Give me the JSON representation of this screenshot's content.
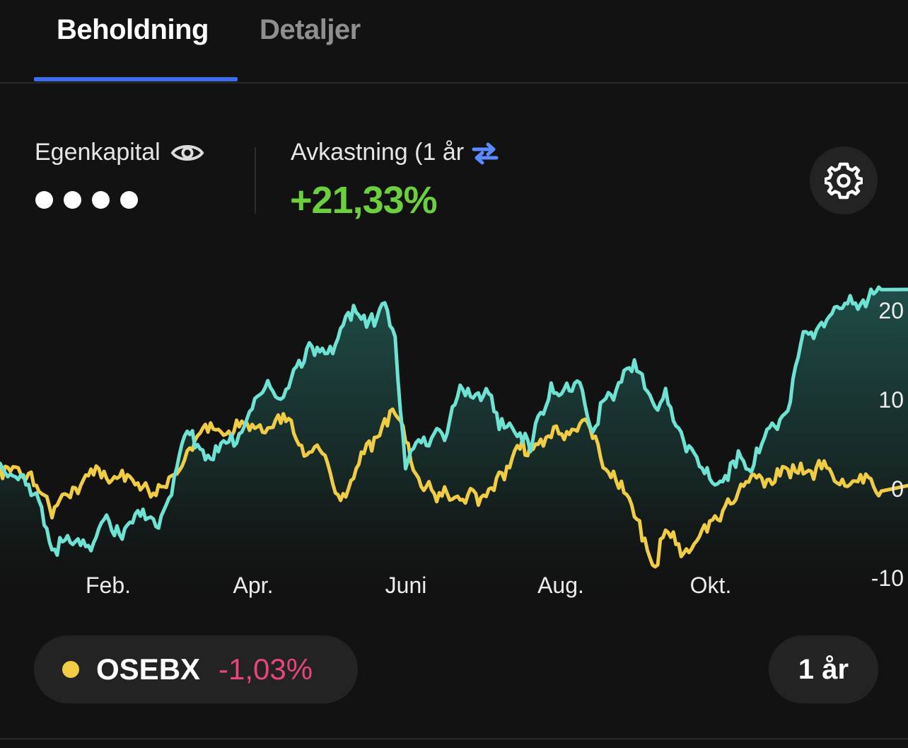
{
  "tabs": [
    {
      "label": "Beholdning",
      "active": true
    },
    {
      "label": "Detaljer",
      "active": false
    }
  ],
  "equity": {
    "label": "Egenkapital",
    "icon": "eye-icon",
    "masked_dots": 4
  },
  "return": {
    "label": "Avkastning (1 år",
    "icon": "swap-arrows-icon",
    "value": "+21,33%",
    "value_color": "#6ccf3c"
  },
  "settings": {
    "icon": "gear-icon"
  },
  "chart_data": {
    "type": "line",
    "x_axis": {
      "tick_labels": [
        "Feb.",
        "Apr.",
        "Juni",
        "Aug.",
        "Okt."
      ]
    },
    "y_axis": {
      "position": "right",
      "ticks": [
        20,
        10,
        0,
        -10
      ],
      "range": [
        -10,
        22
      ]
    },
    "grid": false,
    "series": [
      {
        "color": "#6fe3d3",
        "filled": true,
        "values": [
          2.8,
          1.6,
          1.5,
          -0.8,
          -2.1,
          -6.9,
          -6.0,
          -6.3,
          -5.8,
          -6.1,
          -3.5,
          -5.3,
          -4.5,
          -2.9,
          -3.5,
          -4.3,
          -1.8,
          2.3,
          6.4,
          4.9,
          3.7,
          4.1,
          5.2,
          6.1,
          8.6,
          10.5,
          11.3,
          10.0,
          12.3,
          13.6,
          15.9,
          15.7,
          15.1,
          18.3,
          20.5,
          19.4,
          18.2,
          20.8,
          17.0,
          2.2,
          5.1,
          4.8,
          6.7,
          6.2,
          10.3,
          11.2,
          10.7,
          10.6,
          6.6,
          7.3,
          6.2,
          4.1,
          8.5,
          11.8,
          10.6,
          10.9,
          11.0,
          6.3,
          9.8,
          9.9,
          13.2,
          14.4,
          11.2,
          9.1,
          11.2,
          7.0,
          4.1,
          3.5,
          2.3,
          0.5,
          0.9,
          4.2,
          2.1,
          4.0,
          6.8,
          7.7,
          9.7,
          16.2,
          17.5,
          18.6,
          19.6,
          20.2,
          20.7,
          21.1,
          21.8,
          22.3
        ]
      },
      {
        "color": "#f1cd45",
        "filled": false,
        "values": [
          2.2,
          1.9,
          1.6,
          1.8,
          -0.6,
          -3.3,
          -0.7,
          0.1,
          0.9,
          1.5,
          1.9,
          1.3,
          0.8,
          0.4,
          0.6,
          -0.8,
          0.1,
          1.6,
          4.2,
          5.9,
          6.3,
          6.6,
          6.4,
          6.9,
          6.5,
          7.1,
          6.8,
          7.3,
          7.6,
          4.8,
          4.1,
          3.9,
          0.5,
          -0.6,
          1.1,
          3.9,
          5.7,
          7.8,
          8.3,
          5.2,
          1.6,
          0.2,
          -1.5,
          -0.6,
          -0.9,
          -0.7,
          -1.9,
          -0.1,
          1.8,
          2.3,
          4.4,
          4.8,
          5.5,
          5.7,
          6.1,
          6.6,
          7.6,
          5.6,
          2.3,
          1.9,
          -0.5,
          -3.2,
          -5.6,
          -8.8,
          -4.7,
          -6.3,
          -6.8,
          -5.9,
          -4.9,
          -3.5,
          -1.2,
          -0.4,
          0.7,
          1.5,
          1.0,
          1.4,
          1.2,
          2.8,
          1.9,
          2.2,
          1.6,
          1.0,
          0.8,
          0.6,
          0.2,
          0.3
        ]
      }
    ]
  },
  "benchmark": {
    "name": "OSEBX",
    "dot_color": "#f1cd45",
    "change": "-1,03%",
    "change_color": "#e8457b"
  },
  "period": {
    "label": "1 år"
  }
}
